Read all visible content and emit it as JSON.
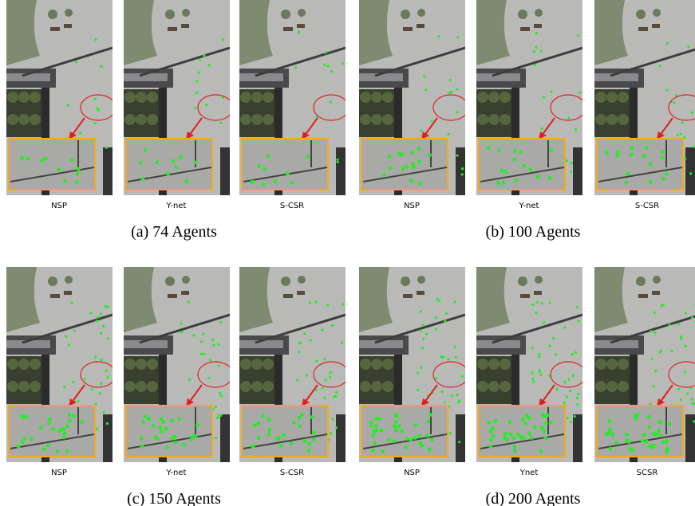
{
  "panels": [
    {
      "caption": "(a) 74 Agents",
      "images": [
        "NSP",
        "Y-net",
        "S-CSR"
      ]
    },
    {
      "caption": "(b) 100 Agents",
      "images": [
        "NSP",
        "Y-net",
        "S-CSR"
      ]
    },
    {
      "caption": "(c) 150 Agents",
      "images": [
        "NSP",
        "Y-net",
        "S-CSR"
      ]
    },
    {
      "caption": "(d) 200 Agents",
      "images": [
        "NSP",
        "Ynet",
        "SCSR"
      ]
    }
  ]
}
